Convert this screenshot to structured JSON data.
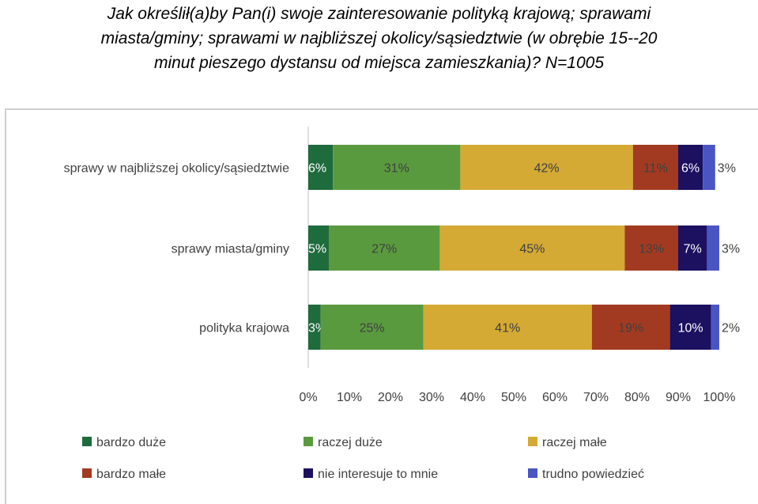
{
  "title_lines": [
    "Jak określił(a)by Pan(i) swoje zainteresowanie polityką krajową; sprawami",
    "miasta/gminy; sprawami w najbliższej okolicy/sąsiedztwie (w obrębie 15--20",
    "minut pieszego dystansu od miejsca zamieszkania)? N=1005"
  ],
  "chart_data": {
    "type": "bar",
    "orientation": "horizontal",
    "stacked": true,
    "percent": true,
    "categories": [
      "sprawy w najbliższej  okolicy/sąsiedztwie",
      "sprawy miasta/gminy",
      "polityka krajowa"
    ],
    "series": [
      {
        "name": "bardzo duże",
        "color": "#1e6b3c",
        "values": [
          6,
          5,
          3
        ],
        "labels": [
          "6%",
          "5%",
          "3%"
        ]
      },
      {
        "name": "raczej duże",
        "color": "#5a9a3f",
        "values": [
          31,
          27,
          25
        ],
        "labels": [
          "31%",
          "27%",
          "25%"
        ]
      },
      {
        "name": "raczej małe",
        "color": "#d4aa34",
        "values": [
          42,
          45,
          41
        ],
        "labels": [
          "42%",
          "45%",
          "41%"
        ]
      },
      {
        "name": "bardzo małe",
        "color": "#a23a22",
        "values": [
          11,
          13,
          19
        ],
        "labels": [
          "11%",
          "13%",
          "19%"
        ]
      },
      {
        "name": "nie interesuje to mnie",
        "color": "#1c1060",
        "values": [
          6,
          7,
          10
        ],
        "labels": [
          "6%",
          "7%",
          "10%"
        ]
      },
      {
        "name": "trudno powiedzieć",
        "color": "#4a55c4",
        "values": [
          3,
          3,
          2
        ],
        "labels": [
          "3%",
          "3%",
          "2%"
        ]
      }
    ],
    "xlim": [
      0,
      100
    ],
    "xticks": [
      "0%",
      "10%",
      "20%",
      "30%",
      "40%",
      "50%",
      "60%",
      "70%",
      "80%",
      "90%",
      "100%"
    ],
    "legend_position": "bottom",
    "grid": false
  }
}
